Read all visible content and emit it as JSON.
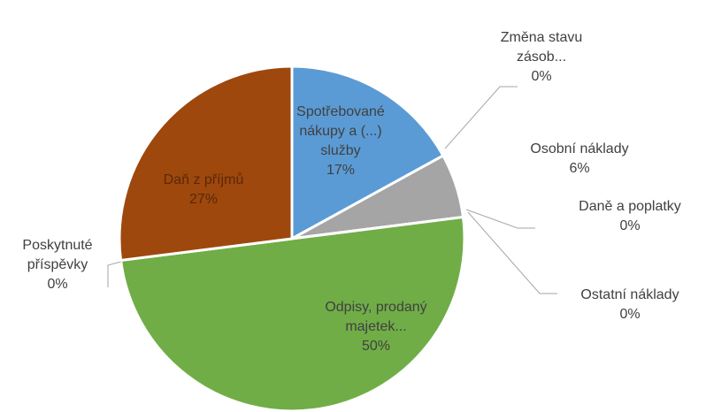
{
  "chart_data": {
    "type": "pie",
    "categories": [
      "Spotřebované nákupy a (...) služby",
      "Změna stavu zásob...",
      "Osobní náklady",
      "Daně a poplatky",
      "Ostatní náklady",
      "Odpisy, prodaný majetek...",
      "Poskytnuté příspěvky",
      "Daň z příjmů"
    ],
    "values": [
      17,
      0,
      6,
      0,
      0,
      50,
      0,
      27
    ],
    "value_labels": [
      "17%",
      "0%",
      "6%",
      "0%",
      "0%",
      "50%",
      "0%",
      "27%"
    ],
    "colors": [
      "#5b9bd5",
      "#ed7d31",
      "#a5a5a5",
      "#ffc000",
      "#4472c4",
      "#70ad47",
      "#264478",
      "#9e480e"
    ]
  }
}
